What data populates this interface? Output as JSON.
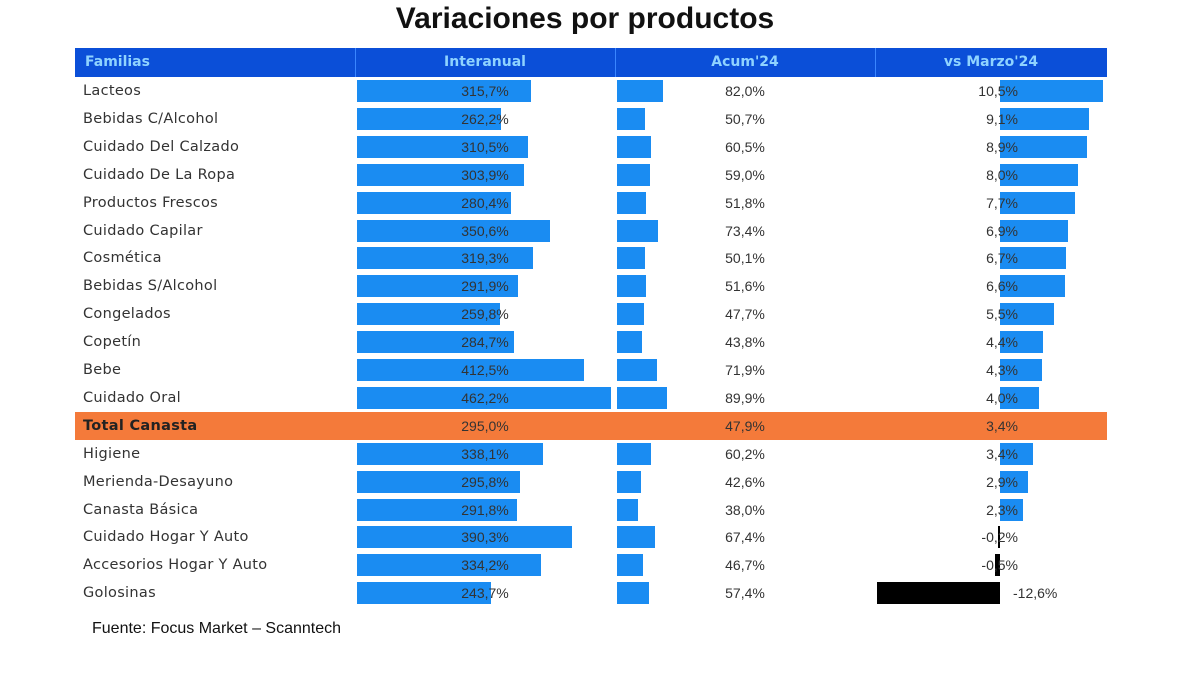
{
  "chart_data": {
    "type": "table",
    "title": "Variaciones por productos",
    "columns": [
      "Familias",
      "Interanual",
      "Acum'24",
      "vs Marzo'24"
    ],
    "rows": [
      {
        "familia": "Lacteos",
        "interanual": 315.7,
        "acum": 82.0,
        "vs_marzo": 10.5
      },
      {
        "familia": "Bebidas C/Alcohol",
        "interanual": 262.2,
        "acum": 50.7,
        "vs_marzo": 9.1
      },
      {
        "familia": "Cuidado Del Calzado",
        "interanual": 310.5,
        "acum": 60.5,
        "vs_marzo": 8.9
      },
      {
        "familia": "Cuidado De La Ropa",
        "interanual": 303.9,
        "acum": 59.0,
        "vs_marzo": 8.0
      },
      {
        "familia": "Productos Frescos",
        "interanual": 280.4,
        "acum": 51.8,
        "vs_marzo": 7.7
      },
      {
        "familia": "Cuidado Capilar",
        "interanual": 350.6,
        "acum": 73.4,
        "vs_marzo": 6.9
      },
      {
        "familia": "Cosmética",
        "interanual": 319.3,
        "acum": 50.1,
        "vs_marzo": 6.7
      },
      {
        "familia": "Bebidas S/Alcohol",
        "interanual": 291.9,
        "acum": 51.6,
        "vs_marzo": 6.6
      },
      {
        "familia": "Congelados",
        "interanual": 259.8,
        "acum": 47.7,
        "vs_marzo": 5.5
      },
      {
        "familia": "Copetín",
        "interanual": 284.7,
        "acum": 43.8,
        "vs_marzo": 4.4
      },
      {
        "familia": "Bebe",
        "interanual": 412.5,
        "acum": 71.9,
        "vs_marzo": 4.3
      },
      {
        "familia": "Cuidado Oral",
        "interanual": 462.2,
        "acum": 89.9,
        "vs_marzo": 4.0
      },
      {
        "familia": "Total Canasta",
        "interanual": 295.0,
        "acum": 47.9,
        "vs_marzo": 3.4,
        "highlight": true
      },
      {
        "familia": "Higiene",
        "interanual": 338.1,
        "acum": 60.2,
        "vs_marzo": 3.4
      },
      {
        "familia": "Merienda-Desayuno",
        "interanual": 295.8,
        "acum": 42.6,
        "vs_marzo": 2.9
      },
      {
        "familia": "Canasta Básica",
        "interanual": 291.8,
        "acum": 38.0,
        "vs_marzo": 2.3
      },
      {
        "familia": "Cuidado Hogar Y Auto",
        "interanual": 390.3,
        "acum": 67.4,
        "vs_marzo": -0.2
      },
      {
        "familia": "Accesorios Hogar Y Auto",
        "interanual": 334.2,
        "acum": 46.7,
        "vs_marzo": -0.5
      },
      {
        "familia": "Golosinas",
        "interanual": 243.7,
        "acum": 57.4,
        "vs_marzo": -12.6
      }
    ],
    "unit": "%",
    "colors": {
      "header": "#0b4fd8",
      "bar": "#1a8cf2",
      "negative_bar": "#000000",
      "highlight": "#f47a3a"
    }
  },
  "source": "Fuente: Focus Market – Scanntech"
}
